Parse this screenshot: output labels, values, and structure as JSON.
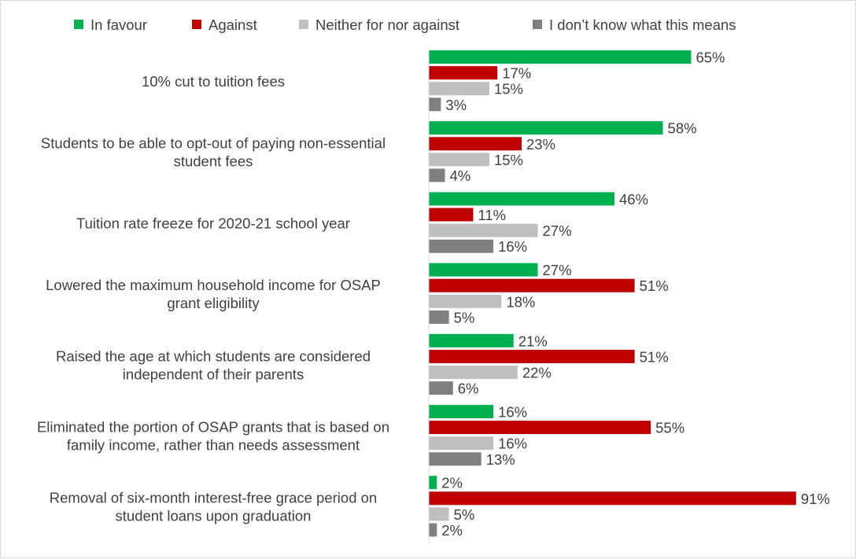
{
  "chart_data": {
    "type": "bar",
    "orientation": "horizontal",
    "categories": [
      [
        "10% cut to tuition fees"
      ],
      [
        "Students to be able to opt-out of paying non-essential",
        "student fees"
      ],
      [
        "Tuition rate freeze for 2020-21 school year"
      ],
      [
        "Lowered the maximum household income for OSAP",
        "grant eligibility"
      ],
      [
        "Raised the age at which students are considered",
        "independent of their parents"
      ],
      [
        "Eliminated the portion of OSAP grants that is based on",
        "family income, rather than needs assessment"
      ],
      [
        "Removal of six-month interest-free grace period on",
        "student loans upon graduation"
      ]
    ],
    "series": [
      {
        "name": "In favour",
        "color": "#00b050",
        "values": [
          65,
          58,
          46,
          27,
          21,
          16,
          2
        ]
      },
      {
        "name": "Against",
        "color": "#c00000",
        "values": [
          17,
          23,
          11,
          51,
          51,
          55,
          91
        ]
      },
      {
        "name": "Neither for nor against",
        "color": "#bfbfbf",
        "values": [
          15,
          15,
          27,
          18,
          22,
          16,
          5
        ]
      },
      {
        "name": "I don’t know what this means",
        "color": "#7f7f7f",
        "values": [
          3,
          4,
          16,
          5,
          6,
          13,
          2
        ]
      }
    ],
    "value_suffix": "%",
    "xlim": [
      0,
      91
    ],
    "legend_position": "top",
    "grid": false,
    "title": "",
    "xlabel": "",
    "ylabel": ""
  }
}
